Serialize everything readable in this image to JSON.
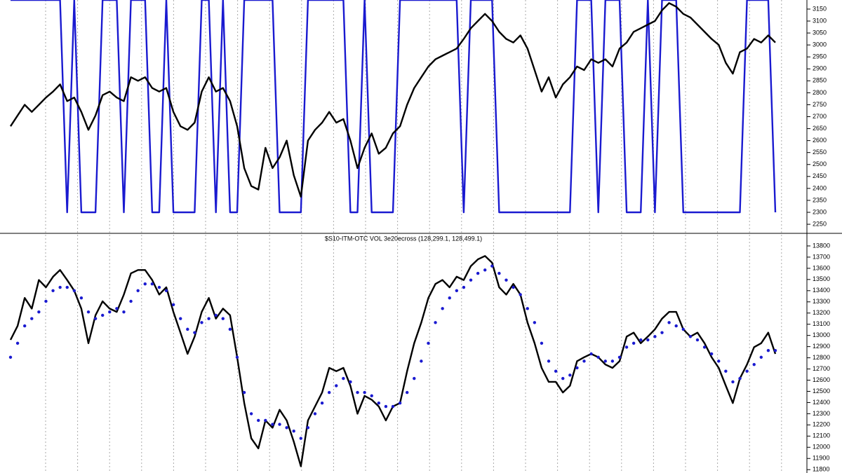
{
  "chart_data": [
    {
      "type": "line",
      "ylim": [
        2215,
        3188
      ],
      "yticks": [
        2250,
        2300,
        2350,
        2400,
        2450,
        2500,
        2550,
        2600,
        2650,
        2700,
        2750,
        2800,
        2850,
        2900,
        2950,
        3000,
        3050,
        3100,
        3150
      ],
      "series": [
        {
          "color": "#1a1ad0",
          "values": [
            3188,
            3188,
            3188,
            3188,
            3188,
            3188,
            3188,
            3188,
            2300,
            3188,
            2300,
            2300,
            2300,
            3188,
            3188,
            3188,
            2300,
            3188,
            3188,
            3188,
            2300,
            2300,
            3188,
            2300,
            2300,
            2300,
            2300,
            3188,
            3188,
            2300,
            3188,
            2300,
            2300,
            3188,
            3188,
            3188,
            3188,
            3188,
            2300,
            2300,
            2300,
            2300,
            3188,
            3188,
            3188,
            3188,
            3188,
            3188,
            2300,
            2300,
            3188,
            2300,
            2300,
            2300,
            2300,
            3188,
            3188,
            3188,
            3188,
            3188,
            3188,
            3188,
            3188,
            3188,
            2300,
            3188,
            3188,
            3188,
            3188,
            2300,
            2300,
            2300,
            2300,
            2300,
            2300,
            2300,
            2300,
            2300,
            2300,
            2300,
            3188,
            3188,
            3188,
            2300,
            3188,
            3188,
            3188,
            2300,
            2300,
            2300,
            3188,
            2300,
            3188,
            3188,
            3188,
            2300,
            2300,
            2300,
            2300,
            2300,
            2300,
            2300,
            2300,
            2300,
            3188,
            3188,
            3188,
            3188,
            2300
          ]
        },
        {
          "color": "#000000",
          "values": [
            2660,
            2705,
            2750,
            2720,
            2750,
            2780,
            2805,
            2835,
            2765,
            2780,
            2720,
            2645,
            2705,
            2790,
            2805,
            2780,
            2765,
            2865,
            2850,
            2865,
            2820,
            2805,
            2820,
            2720,
            2660,
            2645,
            2675,
            2805,
            2865,
            2805,
            2820,
            2765,
            2660,
            2485,
            2410,
            2395,
            2570,
            2485,
            2530,
            2600,
            2455,
            2365,
            2600,
            2645,
            2675,
            2720,
            2675,
            2690,
            2600,
            2485,
            2570,
            2630,
            2545,
            2570,
            2630,
            2660,
            2750,
            2820,
            2865,
            2910,
            2940,
            2955,
            2970,
            2985,
            3025,
            3070,
            3100,
            3130,
            3100,
            3055,
            3025,
            3010,
            3040,
            2985,
            2895,
            2805,
            2865,
            2780,
            2835,
            2865,
            2910,
            2895,
            2940,
            2925,
            2940,
            2910,
            2985,
            3010,
            3055,
            3070,
            3085,
            3100,
            3145,
            3175,
            3160,
            3130,
            3115,
            3085,
            3055,
            3025,
            3000,
            2925,
            2880,
            2970,
            2985,
            3025,
            3010,
            3040,
            3010
          ]
        }
      ]
    },
    {
      "type": "line",
      "title": "$S10-ITM-OTC VOL 3e20ecross (128,299.1, 128,499.1)",
      "ylim": [
        11770,
        13900
      ],
      "yticks": [
        11800,
        11900,
        12000,
        12100,
        12200,
        12300,
        12400,
        12500,
        12600,
        12700,
        12800,
        12900,
        13000,
        13100,
        13200,
        13300,
        13400,
        13500,
        13600,
        13700,
        13800
      ],
      "series": [
        {
          "color": "#000000",
          "values": [
            12960,
            13085,
            13335,
            13240,
            13495,
            13430,
            13525,
            13585,
            13495,
            13400,
            13240,
            12930,
            13180,
            13305,
            13240,
            13210,
            13365,
            13555,
            13585,
            13585,
            13495,
            13365,
            13430,
            13210,
            13025,
            12835,
            12990,
            13210,
            13335,
            13150,
            13240,
            13180,
            12805,
            12395,
            12080,
            11990,
            12240,
            12175,
            12335,
            12240,
            12050,
            11830,
            12240,
            12365,
            12490,
            12710,
            12680,
            12710,
            12550,
            12300,
            12460,
            12425,
            12365,
            12240,
            12365,
            12395,
            12680,
            12930,
            13115,
            13335,
            13460,
            13495,
            13430,
            13525,
            13495,
            13620,
            13680,
            13710,
            13650,
            13430,
            13365,
            13460,
            13365,
            13115,
            12930,
            12710,
            12585,
            12585,
            12490,
            12550,
            12770,
            12805,
            12835,
            12805,
            12740,
            12710,
            12770,
            12990,
            13025,
            12930,
            12990,
            13055,
            13150,
            13210,
            13210,
            13055,
            12990,
            13025,
            12930,
            12805,
            12710,
            12550,
            12395,
            12615,
            12740,
            12895,
            12930,
            13025,
            12835
          ]
        },
        {
          "color": "#1a1ad0",
          "style": "dots",
          "values": [
            12805,
            12930,
            13085,
            13150,
            13210,
            13305,
            13400,
            13430,
            13430,
            13400,
            13335,
            13210,
            13150,
            13180,
            13210,
            13240,
            13210,
            13305,
            13400,
            13460,
            13460,
            13430,
            13400,
            13275,
            13150,
            13055,
            13025,
            13115,
            13150,
            13180,
            13150,
            13055,
            12805,
            12490,
            12300,
            12240,
            12240,
            12205,
            12205,
            12175,
            12145,
            12080,
            12175,
            12300,
            12395,
            12490,
            12550,
            12615,
            12585,
            12490,
            12490,
            12460,
            12395,
            12365,
            12365,
            12395,
            12490,
            12615,
            12770,
            12930,
            13115,
            13240,
            13335,
            13400,
            13430,
            13495,
            13555,
            13585,
            13620,
            13555,
            13495,
            13430,
            13365,
            13240,
            13115,
            12930,
            12770,
            12680,
            12615,
            12645,
            12710,
            12770,
            12835,
            12805,
            12770,
            12770,
            12805,
            12895,
            12930,
            12960,
            12960,
            12990,
            13025,
            13115,
            13085,
            13055,
            12990,
            12960,
            12895,
            12835,
            12770,
            12680,
            12585,
            12615,
            12680,
            12740,
            12805,
            12865,
            12865
          ]
        }
      ]
    }
  ]
}
